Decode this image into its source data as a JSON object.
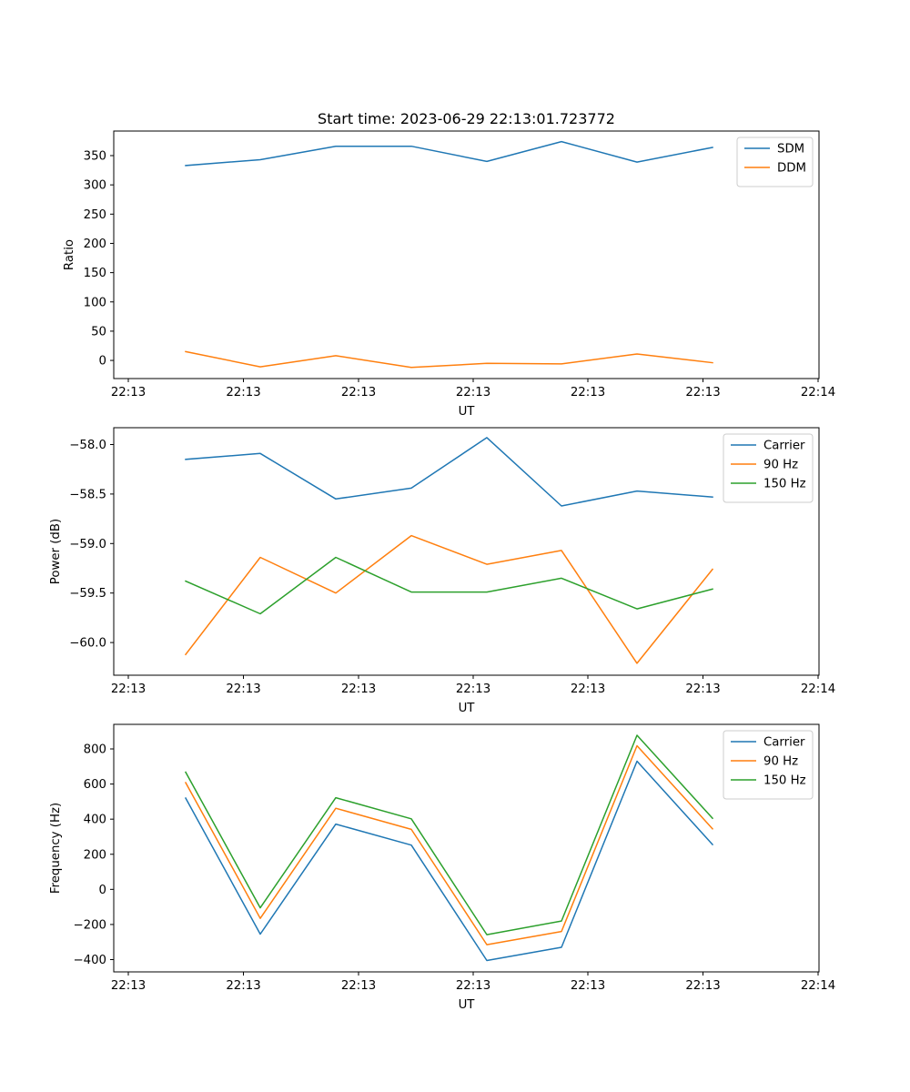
{
  "figure": {
    "title": "Start time: 2023-06-29 22:13:01.723772"
  },
  "chart_data": [
    {
      "type": "line",
      "xlabel": "UT",
      "ylabel": "Ratio",
      "xtick_labels": [
        "22:13",
        "22:13",
        "22:13",
        "22:13",
        "22:13",
        "22:13",
        "22:14"
      ],
      "ylim": [
        -31,
        392
      ],
      "yticks": [
        0,
        50,
        100,
        150,
        200,
        250,
        300,
        350
      ],
      "legend_position": "top-right",
      "series": [
        {
          "name": "SDM",
          "color": "#1f77b4",
          "values": [
            333,
            343,
            366,
            366,
            340,
            374,
            339,
            364
          ]
        },
        {
          "name": "DDM",
          "color": "#ff7f0e",
          "values": [
            15,
            -11,
            8,
            -12,
            -5,
            -6,
            11,
            -4
          ]
        }
      ]
    },
    {
      "type": "line",
      "xlabel": "UT",
      "ylabel": "Power (dB)",
      "xtick_labels": [
        "22:13",
        "22:13",
        "22:13",
        "22:13",
        "22:13",
        "22:13",
        "22:14"
      ],
      "ylim": [
        -60.33,
        -57.83
      ],
      "yticks": [
        -60.0,
        -59.5,
        -59.0,
        -58.5,
        -58.0
      ],
      "legend_position": "top-right",
      "series": [
        {
          "name": "Carrier",
          "color": "#1f77b4",
          "values": [
            -58.15,
            -58.09,
            -58.55,
            -58.44,
            -57.93,
            -58.62,
            -58.47,
            -58.53
          ]
        },
        {
          "name": "90 Hz",
          "color": "#ff7f0e",
          "values": [
            -60.12,
            -59.14,
            -59.5,
            -58.92,
            -59.21,
            -59.07,
            -60.21,
            -59.26
          ]
        },
        {
          "name": "150 Hz",
          "color": "#2ca02c",
          "values": [
            -59.38,
            -59.71,
            -59.14,
            -59.49,
            -59.49,
            -59.35,
            -59.66,
            -59.46
          ]
        }
      ]
    },
    {
      "type": "line",
      "xlabel": "UT",
      "ylabel": "Frequency (Hz)",
      "xtick_labels": [
        "22:13",
        "22:13",
        "22:13",
        "22:13",
        "22:13",
        "22:13",
        "22:14"
      ],
      "ylim": [
        -470,
        940
      ],
      "yticks": [
        -400,
        -200,
        0,
        200,
        400,
        600,
        800
      ],
      "legend_position": "top-right",
      "series": [
        {
          "name": "Carrier",
          "color": "#1f77b4",
          "values": [
            520,
            -255,
            372,
            252,
            -405,
            -330,
            730,
            255
          ]
        },
        {
          "name": "90 Hz",
          "color": "#ff7f0e",
          "values": [
            608,
            -165,
            462,
            342,
            -315,
            -240,
            818,
            345
          ]
        },
        {
          "name": "150 Hz",
          "color": "#2ca02c",
          "values": [
            668,
            -105,
            522,
            402,
            -258,
            -180,
            878,
            405
          ]
        }
      ]
    }
  ]
}
